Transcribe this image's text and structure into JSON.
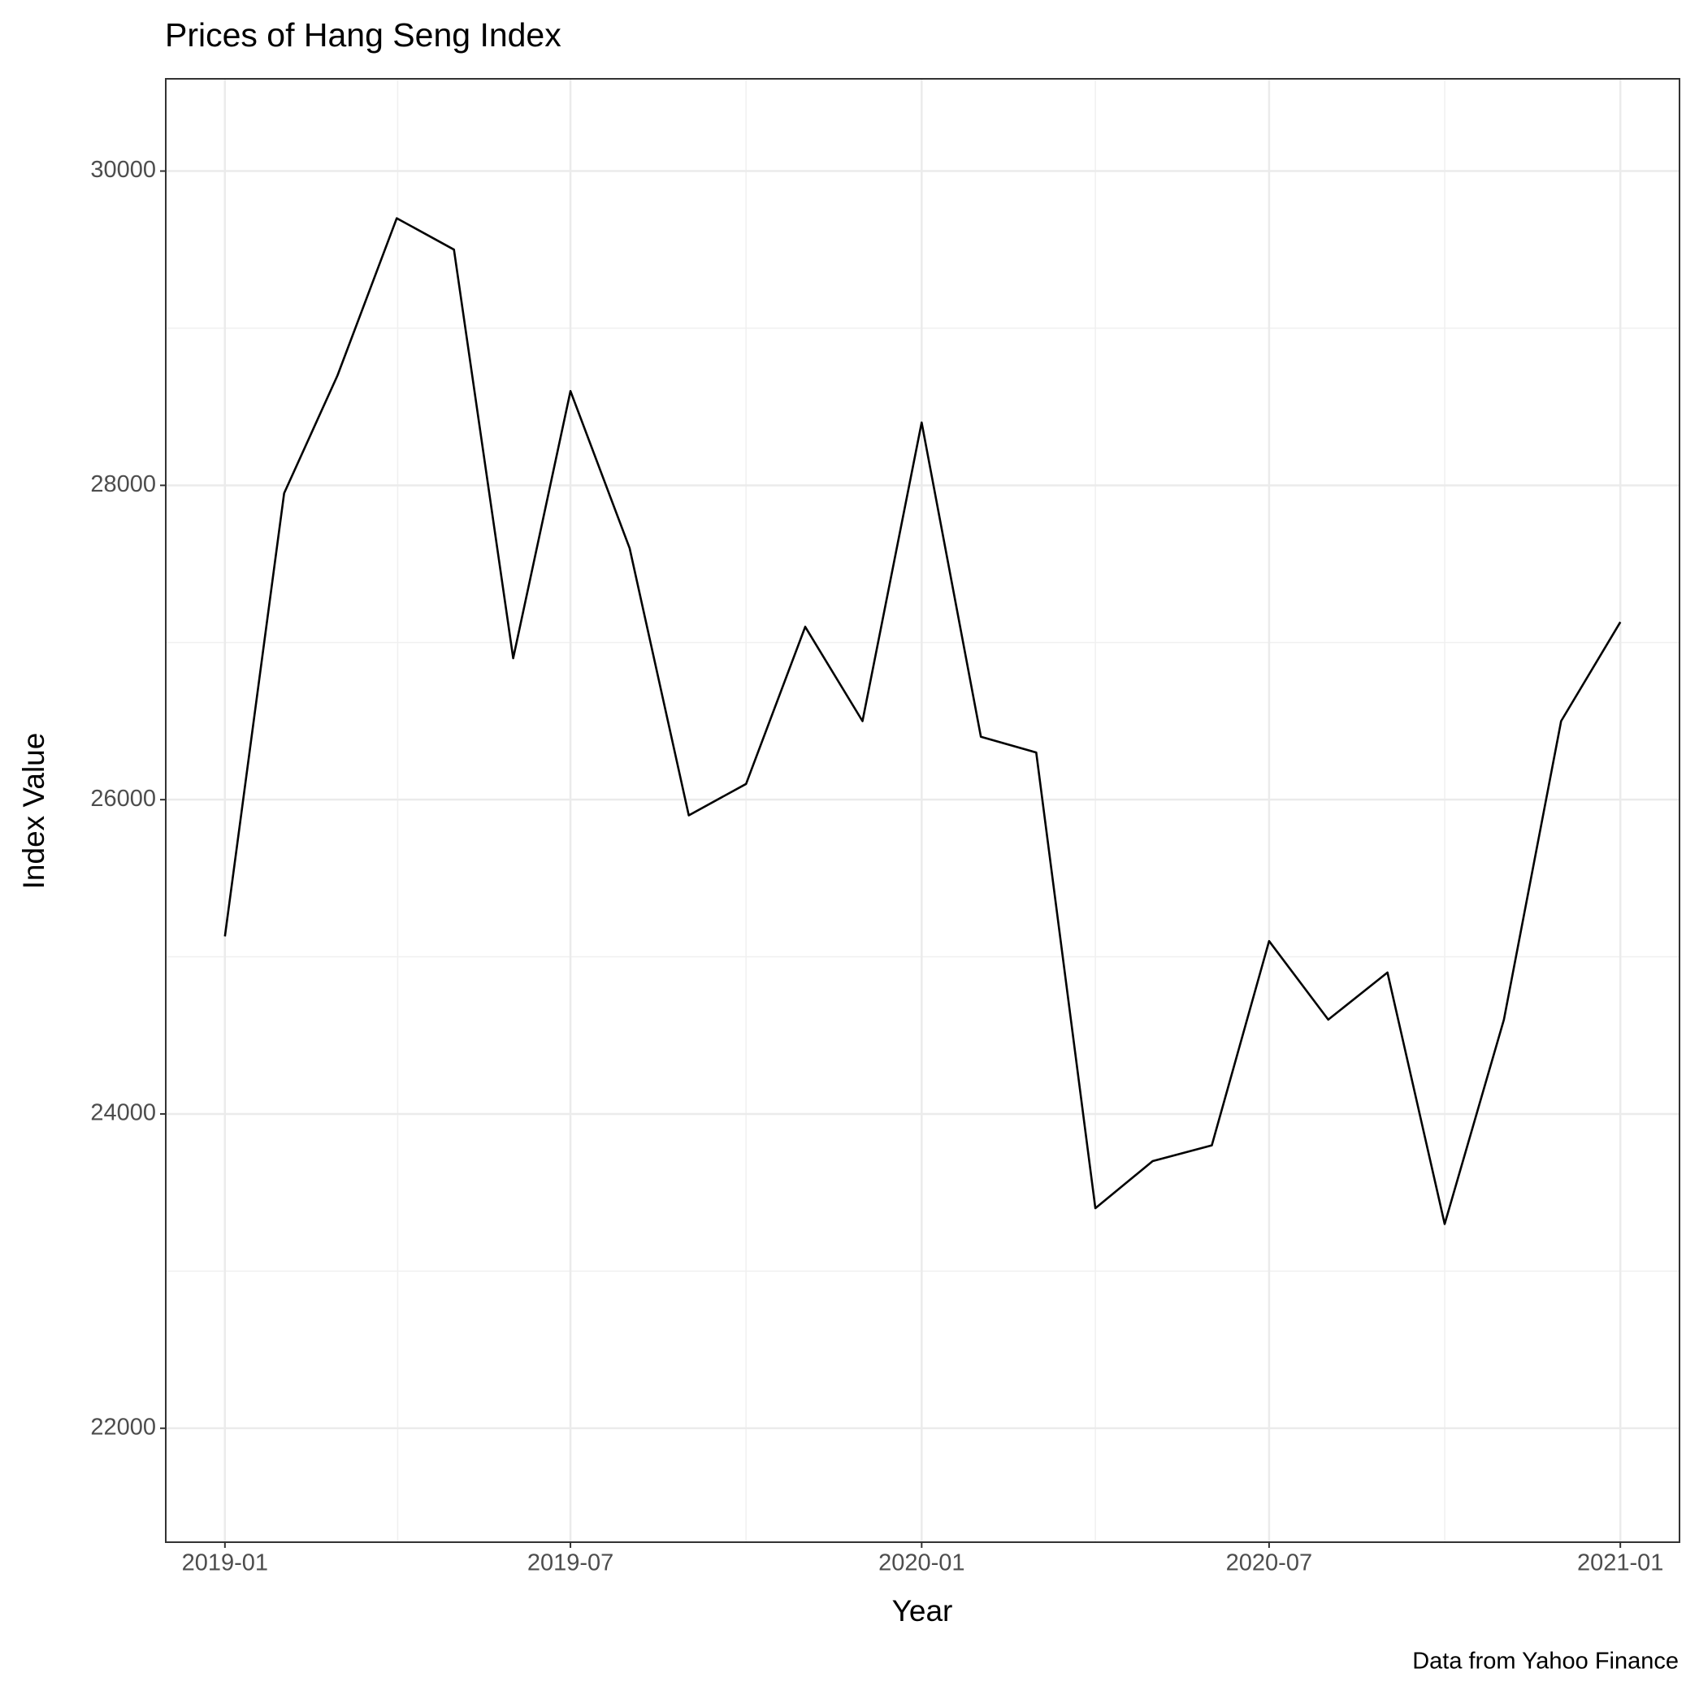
{
  "chart_data": {
    "type": "line",
    "title": "Prices of Hang Seng Index",
    "x_label": "Year",
    "y_label": "Index Value",
    "caption": "Data from Yahoo Finance",
    "x": [
      "2019-01",
      "2019-02",
      "2019-03",
      "2019-04",
      "2019-05",
      "2019-06",
      "2019-07",
      "2019-08",
      "2019-09",
      "2019-10",
      "2019-11",
      "2019-12",
      "2020-01",
      "2020-02",
      "2020-03",
      "2020-04",
      "2020-05",
      "2020-06",
      "2020-07",
      "2020-08",
      "2020-09",
      "2020-10",
      "2020-11",
      "2020-12",
      "2021-01"
    ],
    "series": [
      {
        "name": "Index Value",
        "color": "#000000",
        "values": [
          25130,
          27950,
          28700,
          29700,
          29500,
          26900,
          28600,
          27600,
          25900,
          26100,
          27100,
          26500,
          28400,
          26400,
          26300,
          23400,
          23700,
          23800,
          25100,
          24600,
          24900,
          23300,
          24600,
          26500,
          27130
        ]
      }
    ],
    "xlim": [
      "2018-12",
      "2021-02"
    ],
    "xticks": [
      "2019-01",
      "2019-07",
      "2020-01",
      "2020-07",
      "2021-01"
    ],
    "ylim": [
      21275,
      30587
    ],
    "yticks": [
      22000,
      24000,
      26000,
      28000,
      30000
    ],
    "grid": true
  }
}
